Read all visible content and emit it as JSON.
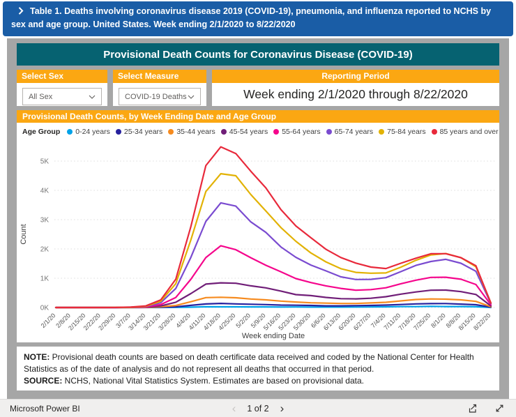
{
  "banner": {
    "text": "Table 1. Deaths involving coronavirus disease 2019 (COVID-19), pneumonia, and influenza reported to NCHS by sex and age group. United States. Week ending 2/1/2020 to 8/22/2020"
  },
  "dashboard": {
    "title": "Provisional Death Counts for Coronavirus Disease (COVID-19)"
  },
  "filters": {
    "sex": {
      "label": "Select Sex",
      "value": "All Sex"
    },
    "measure": {
      "label": "Select Measure",
      "value": "COVID-19 Deaths"
    },
    "reporting": {
      "label": "Reporting Period",
      "value": "Week ending 2/1/2020 through 8/22/2020"
    }
  },
  "chart_header": "Provisional Death Counts, by Week Ending Date and Age Group",
  "chart_data": {
    "type": "line",
    "title": "Provisional Death Counts, by Week Ending Date and Age Group",
    "xlabel": "Week ending Date",
    "ylabel": "Count",
    "ylim": [
      0,
      5600
    ],
    "ytick_labels": [
      "0K",
      "1K",
      "2K",
      "3K",
      "4K",
      "5K"
    ],
    "grid": "dotted horizontal",
    "legend_label": "Age Group",
    "legend_position": "top",
    "categories": [
      "2/1/20",
      "2/8/20",
      "2/15/20",
      "2/22/20",
      "2/29/20",
      "3/7/20",
      "3/14/20",
      "3/21/20",
      "3/28/20",
      "4/4/20",
      "4/11/20",
      "4/18/20",
      "4/25/20",
      "5/2/20",
      "5/9/20",
      "5/16/20",
      "5/23/20",
      "5/30/20",
      "6/6/20",
      "6/13/20",
      "6/20/20",
      "6/27/20",
      "7/4/20",
      "7/11/20",
      "7/18/20",
      "7/25/20",
      "8/1/20",
      "8/8/20",
      "8/15/20",
      "8/22/20"
    ],
    "series": [
      {
        "name": "0-24 years",
        "color": "#00a2e8",
        "values": [
          0,
          0,
          0,
          0,
          0,
          0,
          0,
          2,
          5,
          13,
          26,
          23,
          24,
          21,
          21,
          17,
          18,
          14,
          15,
          14,
          17,
          18,
          23,
          31,
          32,
          41,
          34,
          34,
          26,
          3
        ]
      },
      {
        "name": "25-34 years",
        "color": "#26219e",
        "values": [
          0,
          0,
          0,
          0,
          0,
          0,
          2,
          10,
          24,
          73,
          121,
          141,
          125,
          112,
          100,
          83,
          78,
          71,
          56,
          56,
          65,
          72,
          83,
          103,
          123,
          134,
          136,
          117,
          95,
          12
        ]
      },
      {
        "name": "35-44 years",
        "color": "#f68b1f",
        "values": [
          0,
          0,
          0,
          0,
          0,
          1,
          3,
          26,
          70,
          197,
          339,
          349,
          333,
          290,
          263,
          218,
          187,
          162,
          150,
          139,
          137,
          157,
          179,
          226,
          273,
          292,
          286,
          261,
          209,
          27
        ]
      },
      {
        "name": "45-54 years",
        "color": "#701e78",
        "values": [
          0,
          0,
          0,
          0,
          0,
          2,
          11,
          55,
          181,
          477,
          800,
          843,
          829,
          740,
          672,
          562,
          440,
          407,
          345,
          303,
          295,
          316,
          368,
          457,
          531,
          591,
          596,
          544,
          446,
          52
        ]
      },
      {
        "name": "55-64 years",
        "color": "#f5058c",
        "values": [
          0,
          0,
          0,
          0,
          1,
          5,
          17,
          102,
          342,
          965,
          1704,
          2109,
          1973,
          1701,
          1443,
          1221,
          987,
          853,
          740,
          652,
          591,
          611,
          673,
          811,
          933,
          1028,
          1034,
          966,
          786,
          94
        ]
      },
      {
        "name": "65-74 years",
        "color": "#7a4bd0",
        "values": [
          0,
          0,
          0,
          1,
          1,
          11,
          33,
          164,
          649,
          1712,
          2941,
          3573,
          3463,
          2923,
          2566,
          2069,
          1714,
          1449,
          1253,
          1048,
          958,
          963,
          1018,
          1226,
          1439,
          1571,
          1646,
          1512,
          1237,
          136
        ]
      },
      {
        "name": "75-84 years",
        "color": "#e2b203",
        "values": [
          0,
          0,
          0,
          1,
          2,
          9,
          42,
          216,
          814,
          2306,
          3960,
          4570,
          4500,
          3858,
          3298,
          2730,
          2261,
          1864,
          1559,
          1327,
          1199,
          1171,
          1182,
          1379,
          1611,
          1795,
          1844,
          1702,
          1392,
          158
        ]
      },
      {
        "name": "85 years and over",
        "color": "#e8293b",
        "values": [
          0,
          0,
          0,
          1,
          3,
          17,
          54,
          261,
          967,
          2763,
          4846,
          5486,
          5256,
          4652,
          4085,
          3345,
          2785,
          2383,
          1990,
          1706,
          1517,
          1382,
          1331,
          1512,
          1684,
          1836,
          1838,
          1703,
          1427,
          149
        ]
      }
    ]
  },
  "note": {
    "note_label": "NOTE:",
    "note_text": " Provisional death counts are based on death certificate data received and coded by the National Center for Health Statistics as of the date of analysis and do not represent all deaths that occurred in that period.",
    "source_label": "SOURCE:",
    "source_text": " NCHS, National Vital Statistics System. Estimates are based on provisional data."
  },
  "footer": {
    "brand": "Microsoft Power BI",
    "page": "1 of 2",
    "prev_icon": "‹",
    "next_icon": "›"
  },
  "colors": {
    "banner_blue": "#1a5da6",
    "header_teal": "#066271",
    "accent_orange": "#fba712",
    "frame_gray": "#a6a6a6"
  }
}
